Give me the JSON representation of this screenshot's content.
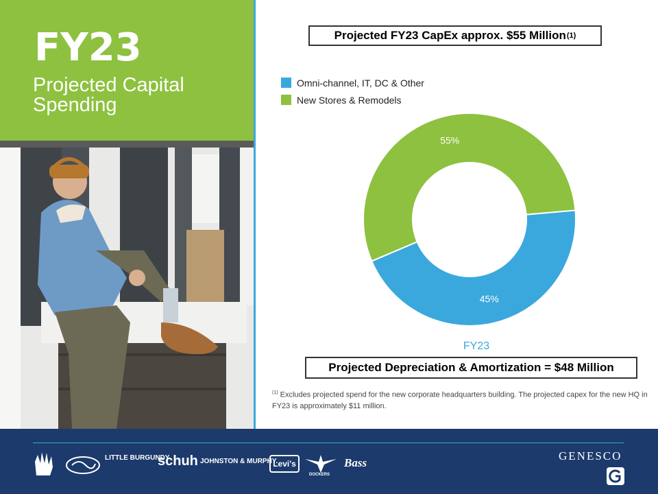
{
  "left_panel": {
    "title": "FY23",
    "subtitle": "Projected Capital Spending"
  },
  "title_box": {
    "text": "Projected FY23 CapEx approx. $55 Million",
    "superscript": "(1)"
  },
  "legend": [
    {
      "label": "Omni-channel, IT, DC & Other",
      "color": "#3aa8dd"
    },
    {
      "label": "New Stores & Remodels",
      "color": "#8dc13f"
    }
  ],
  "chart_data": {
    "type": "pie",
    "categories": [
      "Omni-channel, IT, DC & Other",
      "New Stores & Remodels"
    ],
    "values": [
      45,
      55
    ],
    "labels": [
      "45%",
      "55%"
    ],
    "colors": [
      "#3aa8dd",
      "#8dc13f"
    ],
    "title": "",
    "xlabel": "FY23"
  },
  "chart_caption": "FY23",
  "depreciation_box": {
    "text": "Projected Depreciation & Amortization = $48 Million"
  },
  "footnote": {
    "marker": "(1)",
    "text": "Excludes projected spend for the new corporate headquarters building.  The projected capex for the new HQ in FY23 is approximately $11 million."
  },
  "footer": {
    "brands": [
      "LITTLE BURGUNDY",
      "schuh",
      "JOHNSTON & MURPHY.",
      "Levi's",
      "DOCKERS",
      "Bass"
    ],
    "company": "GENESCO"
  },
  "colors": {
    "green": "#8dc13f",
    "blue": "#3aa8dd",
    "navy": "#1c3a6b"
  }
}
